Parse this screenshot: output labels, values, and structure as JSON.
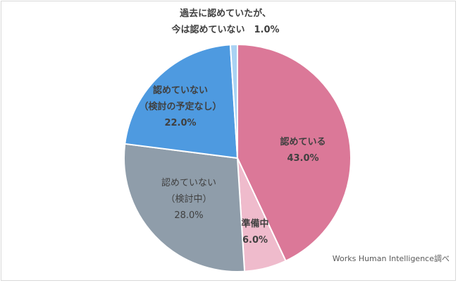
{
  "chart_data": {
    "type": "pie",
    "title": "",
    "start_angle_deg": 0,
    "direction": "clockwise",
    "slices": [
      {
        "label": "認めている",
        "value": 43.0,
        "value_label": "43.0%",
        "color": "#DB7898",
        "bold": true
      },
      {
        "label": "準備中",
        "value": 6.0,
        "value_label": "6.0%",
        "color": "#EFBBCC",
        "bold": true
      },
      {
        "label": "認めていない（検討中）",
        "value": 28.0,
        "value_label": "28.0%",
        "color": "#8F9DAA",
        "bold": false
      },
      {
        "label": "認めていない（検討の予定なし）",
        "value": 22.0,
        "value_label": "22.0%",
        "color": "#4E9AE0",
        "bold": true
      },
      {
        "label": "過去に認めていたが、今は認めていない",
        "value": 1.0,
        "value_label": "1.0%",
        "color": "#A9D2F3",
        "bold": true
      }
    ],
    "legend": "none",
    "annotation": "Works Human Intelligence調べ"
  },
  "labels": {
    "approved": {
      "line1": "認めている",
      "line2": "43.0%"
    },
    "preparing": {
      "line1": "準備中",
      "line2": "6.0%"
    },
    "considering": {
      "line1": "認めていない",
      "line2": "（検討中）",
      "line3": "28.0%"
    },
    "no_plan": {
      "line1": "認めていない",
      "line2": "（検討の予定なし）",
      "line3": "22.0%"
    },
    "past": {
      "line1": "過去に認めていたが、",
      "line2": "今は認めていない　1.0%"
    }
  },
  "source": "Works Human Intelligence調べ"
}
